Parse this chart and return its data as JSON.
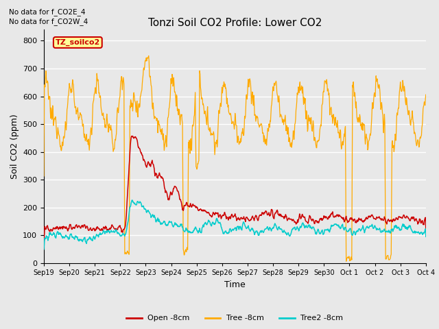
{
  "title": "Tonzi Soil CO2 Profile: Lower CO2",
  "xlabel": "Time",
  "ylabel": "Soil CO2 (ppm)",
  "annotation_lines": [
    "No data for f_CO2E_4",
    "No data for f_CO2W_4"
  ],
  "legend_box_label": "TZ_soilco2",
  "legend_entries": [
    "Open -8cm",
    "Tree -8cm",
    "Tree2 -8cm"
  ],
  "legend_colors": [
    "#cc0000",
    "#ffaa00",
    "#00cccc"
  ],
  "ylim": [
    0,
    840
  ],
  "yticks": [
    0,
    100,
    200,
    300,
    400,
    500,
    600,
    700,
    800
  ],
  "background_color": "#e8e8e8",
  "line_colors": {
    "open": "#cc0000",
    "tree": "#ffaa00",
    "tree2": "#00cccc"
  },
  "x_tick_labels": [
    "Sep 19",
    "Sep 20",
    "Sep 21",
    "Sep 22",
    "Sep 23",
    "Sep 24",
    "Sep 25",
    "Sep 26",
    "Sep 27",
    "Sep 28",
    "Sep 29",
    "Sep 30",
    "Oct 1",
    "Oct 2",
    "Oct 3",
    "Oct 4"
  ],
  "x_tick_positions": [
    0,
    1,
    2,
    3,
    4,
    5,
    6,
    7,
    8,
    9,
    10,
    11,
    12,
    13,
    14,
    15
  ],
  "figsize": [
    6.4,
    4.8
  ],
  "dpi": 100
}
